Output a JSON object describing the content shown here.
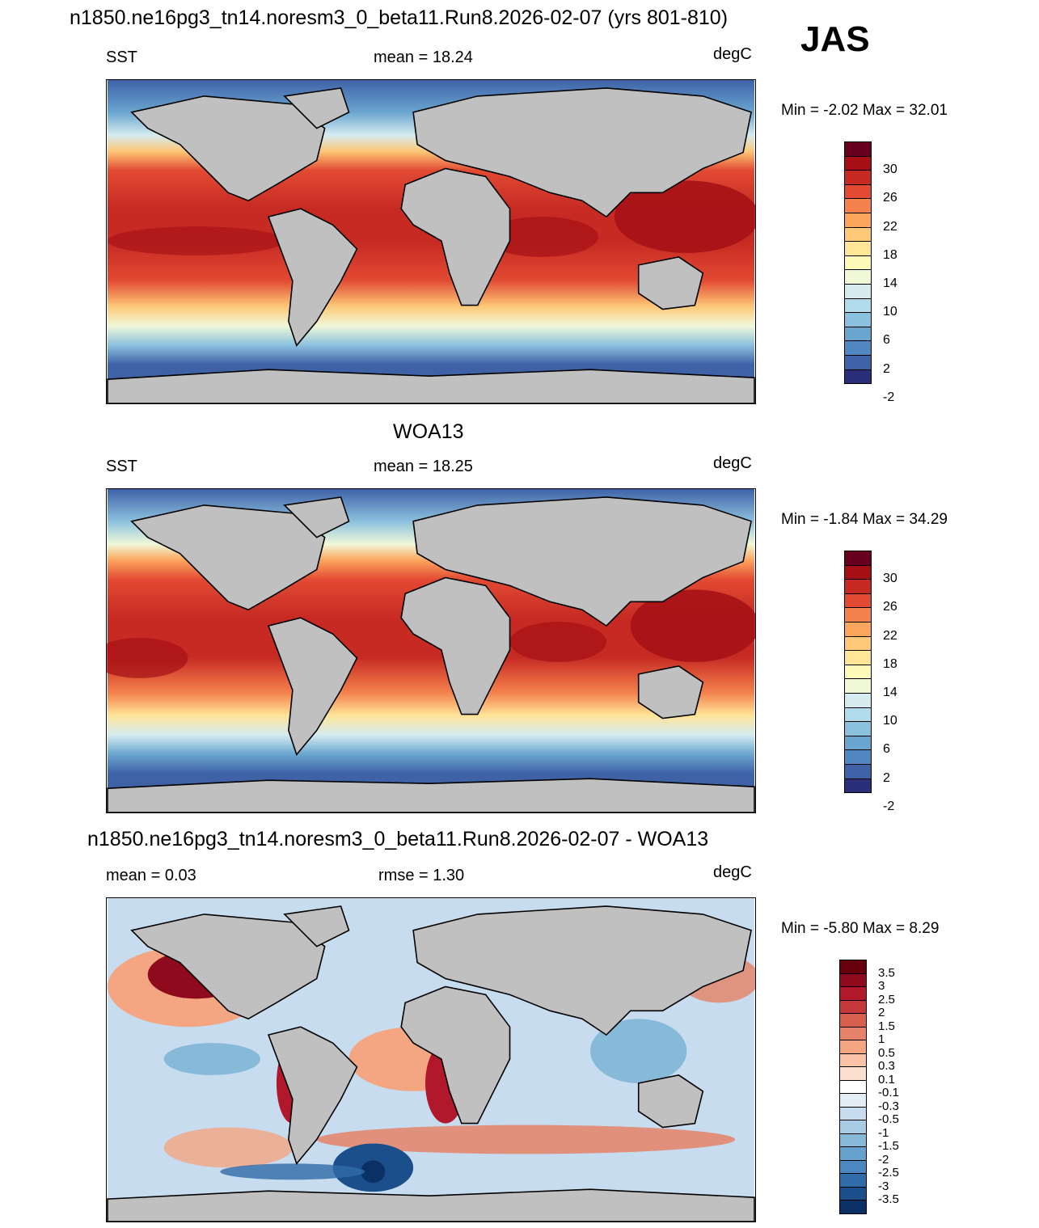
{
  "season": "JAS",
  "panels": [
    {
      "title": "n1850.ne16pg3_tn14.noresm3_0_beta11.Run8.2026-02-07 (yrs 801-810)",
      "left_label": "SST",
      "center_label": "mean =  18.24",
      "right_label": "degC",
      "minmax": "Min =  -2.02 Max =  32.01",
      "kind": "sst"
    },
    {
      "title": "WOA13",
      "left_label": "SST",
      "center_label": "mean =  18.25",
      "right_label": "degC",
      "minmax": "Min =  -1.84 Max =  34.29",
      "kind": "sst"
    },
    {
      "title": "n1850.ne16pg3_tn14.noresm3_0_beta11.Run8.2026-02-07 - WOA13",
      "left_label": "mean =   0.03",
      "center_label": "rmse =   1.30",
      "right_label": "degC",
      "minmax": "Min =  -5.80 Max =   8.29",
      "kind": "diff"
    }
  ],
  "colorbars": {
    "sst": {
      "labels": [
        "30",
        "26",
        "22",
        "18",
        "14",
        "10",
        "6",
        "2",
        "-2"
      ],
      "colors": [
        "#67001f",
        "#a50f15",
        "#c62a23",
        "#e24a33",
        "#f4824d",
        "#fca55d",
        "#fdc877",
        "#fee598",
        "#fefab8",
        "#f0f8d8",
        "#d5ebf0",
        "#b2dbeb",
        "#8cc1de",
        "#6aa6cf",
        "#5087c1",
        "#3f62a7",
        "#2b2e78"
      ]
    },
    "diff": {
      "labels": [
        "3.5",
        "3",
        "2.5",
        "2",
        "1.5",
        "1",
        "0.5",
        "0.3",
        "0.1",
        "-0.1",
        "-0.3",
        "-0.5",
        "-1",
        "-1.5",
        "-2",
        "-2.5",
        "-3",
        "-3.5"
      ],
      "colors": [
        "#67000d",
        "#8e0a1c",
        "#b1182b",
        "#c6393b",
        "#d6604d",
        "#e58267",
        "#f4a582",
        "#f8c3a7",
        "#fbe0d0",
        "#ffffff",
        "#e3eef6",
        "#c7dcef",
        "#a8cce4",
        "#87bad9",
        "#66a2cc",
        "#4a88bf",
        "#2f6ca9",
        "#1b4f8c",
        "#0b3066"
      ]
    }
  }
}
